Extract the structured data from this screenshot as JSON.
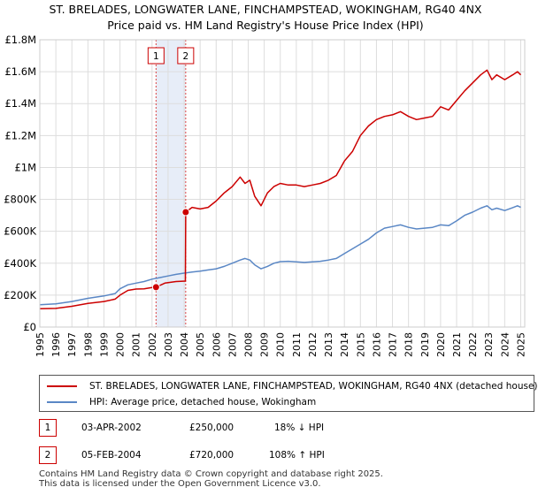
{
  "chart_data": {
    "type": "line",
    "title": "ST. BRELADES, LONGWATER LANE, FINCHAMPSTEAD, WOKINGHAM, RG40 4NX",
    "subtitle": "Price paid vs. HM Land Registry's House Price Index (HPI)",
    "xlim": [
      1995,
      2025.25
    ],
    "ylim": [
      0,
      1800000
    ],
    "y_ticks": [
      {
        "value": 0,
        "label": "£0"
      },
      {
        "value": 200000,
        "label": "£200K"
      },
      {
        "value": 400000,
        "label": "£400K"
      },
      {
        "value": 600000,
        "label": "£600K"
      },
      {
        "value": 800000,
        "label": "£800K"
      },
      {
        "value": 1000000,
        "label": "£1M"
      },
      {
        "value": 1200000,
        "label": "£1.2M"
      },
      {
        "value": 1400000,
        "label": "£1.4M"
      },
      {
        "value": 1600000,
        "label": "£1.6M"
      },
      {
        "value": 1800000,
        "label": "£1.8M"
      }
    ],
    "x_ticks": [
      "1995",
      "1996",
      "1997",
      "1998",
      "1999",
      "2000",
      "2001",
      "2002",
      "2003",
      "2004",
      "2005",
      "2006",
      "2007",
      "2008",
      "2009",
      "2010",
      "2011",
      "2012",
      "2013",
      "2014",
      "2015",
      "2016",
      "2017",
      "2018",
      "2019",
      "2020",
      "2021",
      "2022",
      "2023",
      "2024",
      "2025"
    ],
    "grid": true,
    "series": [
      {
        "name": "ST. BRELADES, LONGWATER LANE, FINCHAMPSTEAD, WOKINGHAM, RG40 4NX (detached house)",
        "color": "#cc0000",
        "points": [
          [
            1995.0,
            115000
          ],
          [
            1996.0,
            117000
          ],
          [
            1997.0,
            130000
          ],
          [
            1998.0,
            148000
          ],
          [
            1999.0,
            160000
          ],
          [
            1999.7,
            175000
          ],
          [
            2000.0,
            200000
          ],
          [
            2000.5,
            230000
          ],
          [
            2001.0,
            238000
          ],
          [
            2001.5,
            240000
          ],
          [
            2002.0,
            248000
          ],
          [
            2002.25,
            250000
          ],
          [
            2002.8,
            275000
          ],
          [
            2003.5,
            285000
          ],
          [
            2004.08,
            288000
          ],
          [
            2004.1,
            720000
          ],
          [
            2004.5,
            750000
          ],
          [
            2005.0,
            740000
          ],
          [
            2005.5,
            750000
          ],
          [
            2006.0,
            790000
          ],
          [
            2006.5,
            840000
          ],
          [
            2007.0,
            880000
          ],
          [
            2007.5,
            940000
          ],
          [
            2007.8,
            900000
          ],
          [
            2008.1,
            920000
          ],
          [
            2008.4,
            820000
          ],
          [
            2008.8,
            760000
          ],
          [
            2009.2,
            840000
          ],
          [
            2009.6,
            880000
          ],
          [
            2010.0,
            900000
          ],
          [
            2010.5,
            890000
          ],
          [
            2011.0,
            890000
          ],
          [
            2011.5,
            880000
          ],
          [
            2012.0,
            890000
          ],
          [
            2012.5,
            900000
          ],
          [
            2013.0,
            920000
          ],
          [
            2013.5,
            950000
          ],
          [
            2014.0,
            1040000
          ],
          [
            2014.5,
            1100000
          ],
          [
            2015.0,
            1200000
          ],
          [
            2015.5,
            1260000
          ],
          [
            2016.0,
            1300000
          ],
          [
            2016.5,
            1320000
          ],
          [
            2017.0,
            1330000
          ],
          [
            2017.5,
            1350000
          ],
          [
            2018.0,
            1320000
          ],
          [
            2018.5,
            1300000
          ],
          [
            2019.0,
            1310000
          ],
          [
            2019.5,
            1320000
          ],
          [
            2020.0,
            1380000
          ],
          [
            2020.5,
            1360000
          ],
          [
            2021.0,
            1420000
          ],
          [
            2021.5,
            1480000
          ],
          [
            2022.0,
            1530000
          ],
          [
            2022.5,
            1580000
          ],
          [
            2022.9,
            1610000
          ],
          [
            2023.2,
            1550000
          ],
          [
            2023.5,
            1580000
          ],
          [
            2024.0,
            1550000
          ],
          [
            2024.5,
            1580000
          ],
          [
            2024.8,
            1600000
          ],
          [
            2025.0,
            1580000
          ]
        ]
      },
      {
        "name": "HPI: Average price, detached house, Wokingham",
        "color": "#5a87c5",
        "points": [
          [
            1995.0,
            140000
          ],
          [
            1996.0,
            145000
          ],
          [
            1997.0,
            160000
          ],
          [
            1998.0,
            180000
          ],
          [
            1999.0,
            195000
          ],
          [
            1999.7,
            210000
          ],
          [
            2000.0,
            240000
          ],
          [
            2000.5,
            265000
          ],
          [
            2001.0,
            275000
          ],
          [
            2001.5,
            285000
          ],
          [
            2002.0,
            300000
          ],
          [
            2002.5,
            310000
          ],
          [
            2003.0,
            320000
          ],
          [
            2003.5,
            330000
          ],
          [
            2004.0,
            338000
          ],
          [
            2004.5,
            345000
          ],
          [
            2005.0,
            350000
          ],
          [
            2005.5,
            358000
          ],
          [
            2006.0,
            365000
          ],
          [
            2006.5,
            380000
          ],
          [
            2007.0,
            400000
          ],
          [
            2007.5,
            420000
          ],
          [
            2007.8,
            430000
          ],
          [
            2008.1,
            420000
          ],
          [
            2008.4,
            390000
          ],
          [
            2008.8,
            365000
          ],
          [
            2009.2,
            380000
          ],
          [
            2009.6,
            400000
          ],
          [
            2010.0,
            410000
          ],
          [
            2010.5,
            412000
          ],
          [
            2011.0,
            408000
          ],
          [
            2011.5,
            405000
          ],
          [
            2012.0,
            408000
          ],
          [
            2012.5,
            412000
          ],
          [
            2013.0,
            420000
          ],
          [
            2013.5,
            430000
          ],
          [
            2014.0,
            460000
          ],
          [
            2014.5,
            490000
          ],
          [
            2015.0,
            520000
          ],
          [
            2015.5,
            550000
          ],
          [
            2016.0,
            590000
          ],
          [
            2016.5,
            620000
          ],
          [
            2017.0,
            630000
          ],
          [
            2017.5,
            640000
          ],
          [
            2018.0,
            625000
          ],
          [
            2018.5,
            615000
          ],
          [
            2019.0,
            620000
          ],
          [
            2019.5,
            625000
          ],
          [
            2020.0,
            640000
          ],
          [
            2020.5,
            635000
          ],
          [
            2021.0,
            665000
          ],
          [
            2021.5,
            700000
          ],
          [
            2022.0,
            720000
          ],
          [
            2022.5,
            745000
          ],
          [
            2022.9,
            760000
          ],
          [
            2023.2,
            735000
          ],
          [
            2023.5,
            745000
          ],
          [
            2024.0,
            730000
          ],
          [
            2024.5,
            748000
          ],
          [
            2024.8,
            760000
          ],
          [
            2025.0,
            750000
          ]
        ]
      }
    ],
    "sales": [
      {
        "id": "1",
        "x": 2002.25,
        "y": 250000
      },
      {
        "id": "2",
        "x": 2004.1,
        "y": 720000
      }
    ],
    "shaded_span": [
      2002.25,
      2004.1
    ]
  },
  "transactions": [
    {
      "id": "1",
      "date": "03-APR-2002",
      "price": "£250,000",
      "hpi": "18% ↓ HPI"
    },
    {
      "id": "2",
      "date": "05-FEB-2004",
      "price": "£720,000",
      "hpi": "108% ↑ HPI"
    }
  ],
  "footer": {
    "line1": "Contains HM Land Registry data © Crown copyright and database right 2025.",
    "line2": "This data is licensed under the Open Government Licence v3.0."
  }
}
